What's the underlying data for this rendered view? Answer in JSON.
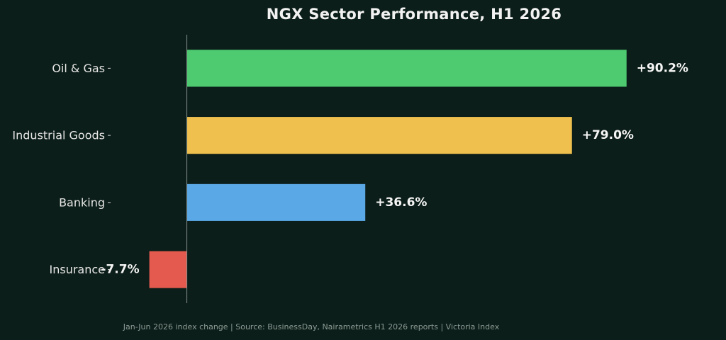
{
  "chart_data": {
    "type": "bar",
    "orientation": "horizontal",
    "title": "NGX Sector Performance, H1 2026",
    "categories": [
      "Oil & Gas",
      "Industrial Goods",
      "Banking",
      "Insurance"
    ],
    "values": [
      90.2,
      79.0,
      36.6,
      -7.7
    ],
    "value_labels": [
      "+90.2%",
      "+79.0%",
      "+36.6%",
      "-7.7%"
    ],
    "colors": [
      "#4ecb71",
      "#f0c04e",
      "#5aa8e6",
      "#e45a4f"
    ],
    "xlim": [
      -15.5,
      101
    ],
    "grid": false,
    "legend": "none",
    "footnote": "Jan-Jun 2026 index change  |  Source: BusinessDay, Nairametrics H1 2026 reports  |  Victoria Index"
  }
}
